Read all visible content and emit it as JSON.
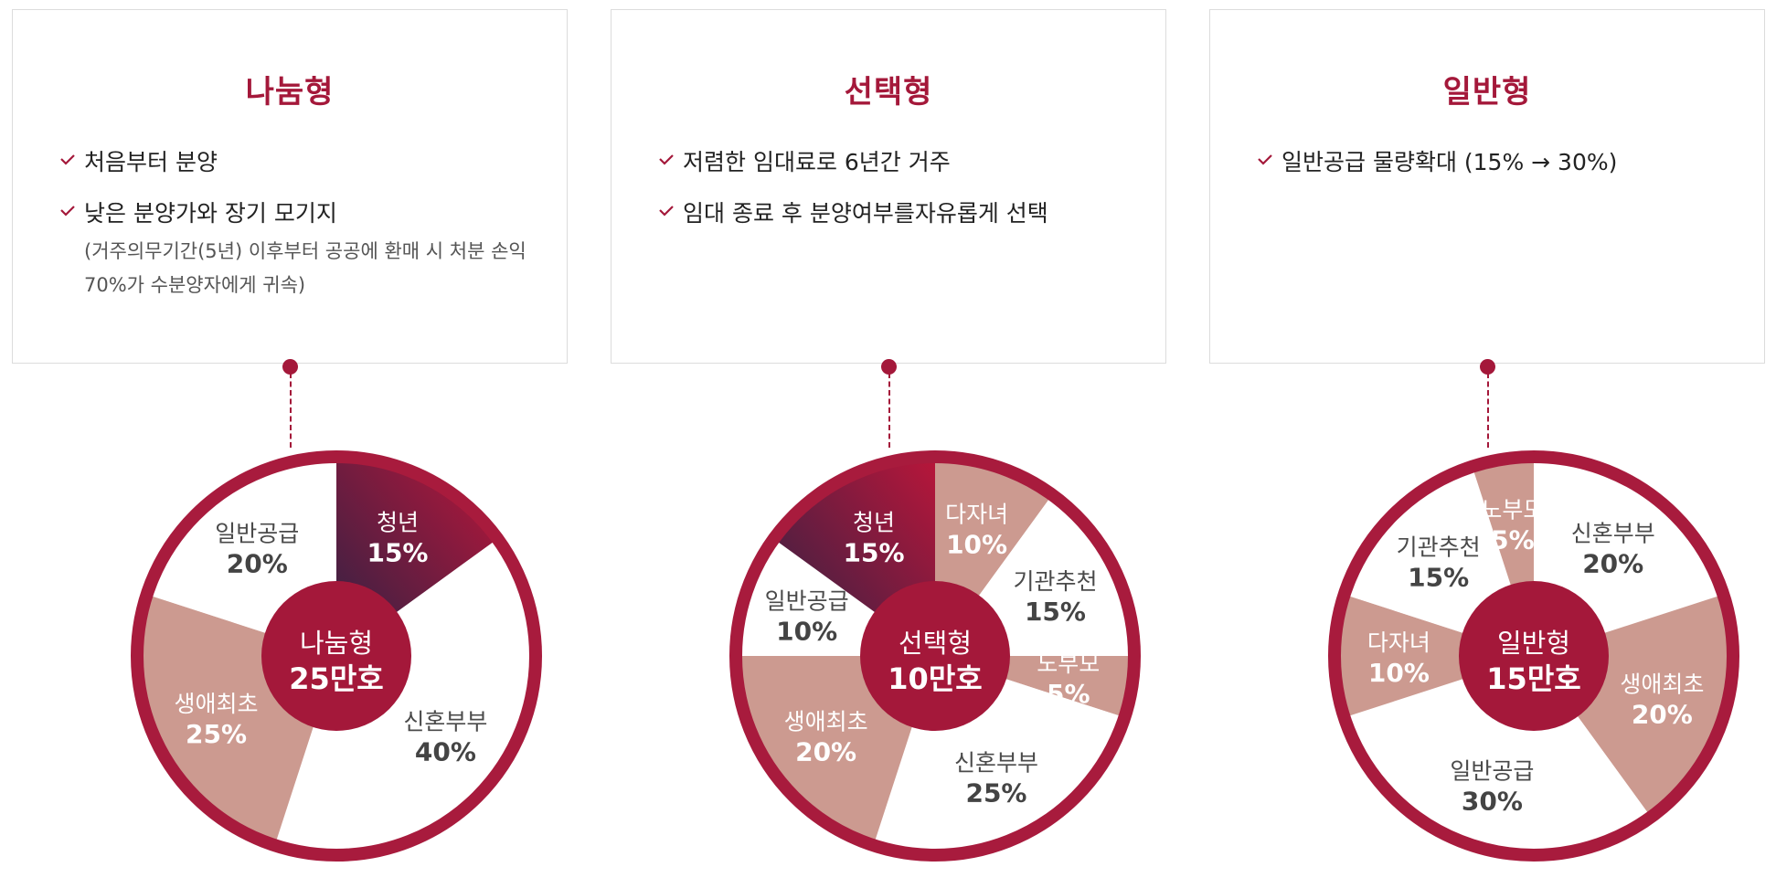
{
  "colors": {
    "brand": "#a4183a",
    "rim": "#a81b3d",
    "accent_light": "#cc9a90",
    "slice_white": "#ffffff",
    "gradient_dark": "#2e2244",
    "gradient_red": "#b8163a"
  },
  "cards": [
    {
      "title": "나눔형",
      "bullets": [
        {
          "text": "처음부터 분양",
          "sub": ""
        },
        {
          "text": "낮은 분양가와 장기 모기지",
          "sub": "(거주의무기간(5년) 이후부터 공공에 환매 시 처분 손익 70%가 수분양자에게 귀속)"
        }
      ]
    },
    {
      "title": "선택형",
      "bullets": [
        {
          "text": "저렴한 임대료로 6년간 거주",
          "sub": ""
        },
        {
          "text": "임대 종료 후 분양여부를자유롭게 선택",
          "sub": ""
        }
      ]
    },
    {
      "title": "일반형",
      "bullets": [
        {
          "text": "일반공급 물량확대 (15% → 30%)",
          "sub": ""
        }
      ]
    }
  ],
  "chart_data": [
    {
      "type": "pie",
      "center_label": "나눔형",
      "center_value": "25만호",
      "slices": [
        {
          "label": "청년",
          "display": "15%",
          "value": 15,
          "style": "gradient"
        },
        {
          "label": "신혼부부",
          "display": "40%",
          "value": 40,
          "style": "white"
        },
        {
          "label": "생애최초",
          "display": "25%",
          "value": 25,
          "style": "light"
        },
        {
          "label": "일반공급",
          "display": "20%",
          "value": 20,
          "style": "white"
        }
      ]
    },
    {
      "type": "pie",
      "center_label": "선택형",
      "center_value": "10만호",
      "slices": [
        {
          "label": "다자녀",
          "display": "10%",
          "value": 10,
          "style": "light"
        },
        {
          "label": "기관추천",
          "display": "15%",
          "value": 15,
          "style": "white"
        },
        {
          "label": "노부모",
          "display": "5%",
          "value": 5,
          "style": "light"
        },
        {
          "label": "신혼부부",
          "display": "25%",
          "value": 25,
          "style": "white"
        },
        {
          "label": "생애최초",
          "display": "20%",
          "value": 20,
          "style": "light"
        },
        {
          "label": "일반공급",
          "display": "10%",
          "value": 10,
          "style": "white"
        },
        {
          "label": "청년",
          "display": "15%",
          "value": 15,
          "style": "gradient"
        }
      ]
    },
    {
      "type": "pie",
      "center_label": "일반형",
      "center_value": "15만호",
      "slices": [
        {
          "label": "신혼부부",
          "display": "20%",
          "value": 20,
          "style": "white"
        },
        {
          "label": "생애최초",
          "display": "20%",
          "value": 20,
          "style": "light"
        },
        {
          "label": "일반공급",
          "display": "30%",
          "value": 30,
          "style": "white"
        },
        {
          "label": "다자녀",
          "display": "10%",
          "value": 10,
          "style": "light"
        },
        {
          "label": "기관추천",
          "display": "15%",
          "value": 15,
          "style": "white"
        },
        {
          "label": "노부모",
          "display": "5%",
          "value": 5,
          "style": "light"
        }
      ]
    }
  ]
}
